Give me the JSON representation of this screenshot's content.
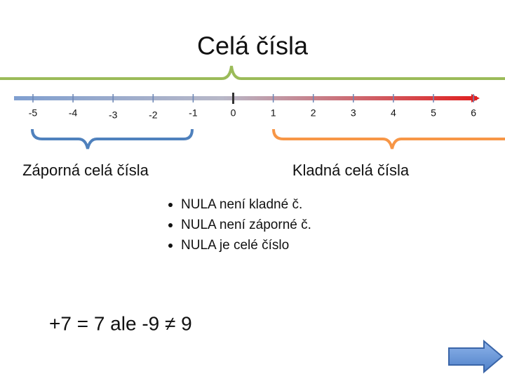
{
  "header": {
    "title": "Celá čísla"
  },
  "number_line": {
    "labels": [
      "-5",
      "-4",
      "-3",
      "-2",
      "-1",
      "0",
      "1",
      "2",
      "3",
      "4",
      "5",
      "6"
    ]
  },
  "braces": {
    "negative": "Záporná celá čísla",
    "positive": "Kladná celá čísla"
  },
  "bullets": [
    "NULA není kladné č.",
    "NULA není záporné č.",
    "NULA je celé číslo"
  ],
  "equation": "+7 = 7  ale -9 ≠ 9"
}
